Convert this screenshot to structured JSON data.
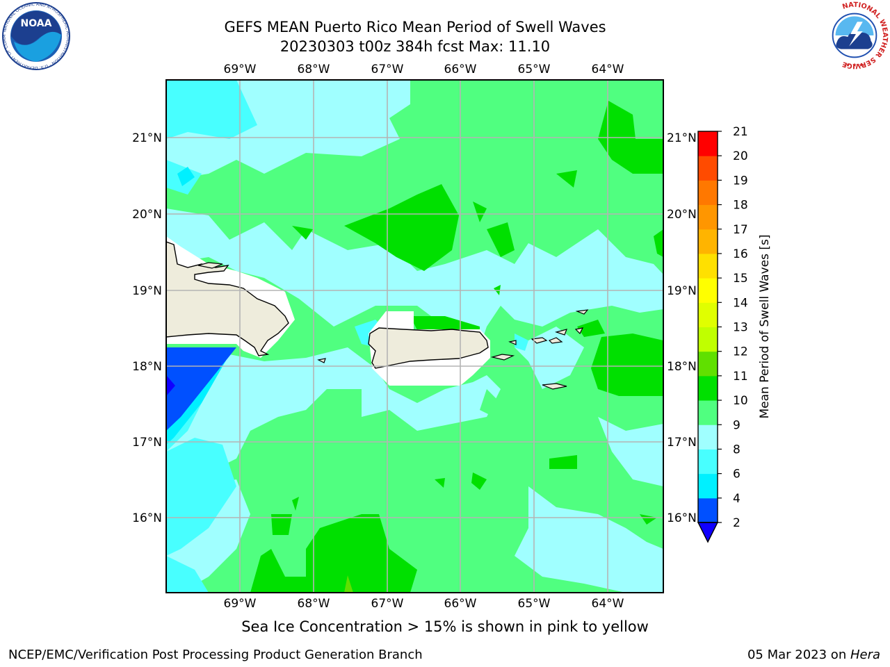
{
  "header": {
    "title_line1": "GEFS MEAN Puerto Rico Mean Period of Swell Waves",
    "title_line2": "20230303 t00z 384h fcst   Max: 11.10"
  },
  "logos": {
    "noaa": "NOAA",
    "noaa_ring_text": "NATIONAL OCEANIC AND ATMOSPHERIC ADMINISTRATION · U.S. DEPARTMENT OF COMMERCE",
    "nws_ring_text": "NATIONAL WEATHER SERVICE"
  },
  "map": {
    "lon_labels": [
      "69°W",
      "68°W",
      "67°W",
      "66°W",
      "65°W",
      "64°W"
    ],
    "lat_labels": [
      "21°N",
      "20°N",
      "19°N",
      "18°N",
      "17°N",
      "16°N"
    ]
  },
  "colorbar": {
    "label": "Mean Period of Swell Waves [s]",
    "ticks": [
      "2",
      "4",
      "6",
      "8",
      "9",
      "10",
      "11",
      "12",
      "13",
      "14",
      "15",
      "16",
      "17",
      "18",
      "19",
      "20",
      "21"
    ],
    "colors": [
      "#0050ff",
      "#00f0ff",
      "#48ffff",
      "#a0ffff",
      "#50ff80",
      "#00e000",
      "#60e000",
      "#c0ff00",
      "#e0ff00",
      "#ffff00",
      "#ffe000",
      "#ffb400",
      "#ff9600",
      "#ff7800",
      "#ff4b00",
      "#ff0000"
    ],
    "under_color": "#1000ff"
  },
  "note": "Sea Ice Concentration > 15% is shown in pink to yellow",
  "footer": {
    "left": "NCEP/EMC/Verification Post Processing Product Generation Branch",
    "date": "05 Mar 2023 on ",
    "machine": "Hera"
  }
}
